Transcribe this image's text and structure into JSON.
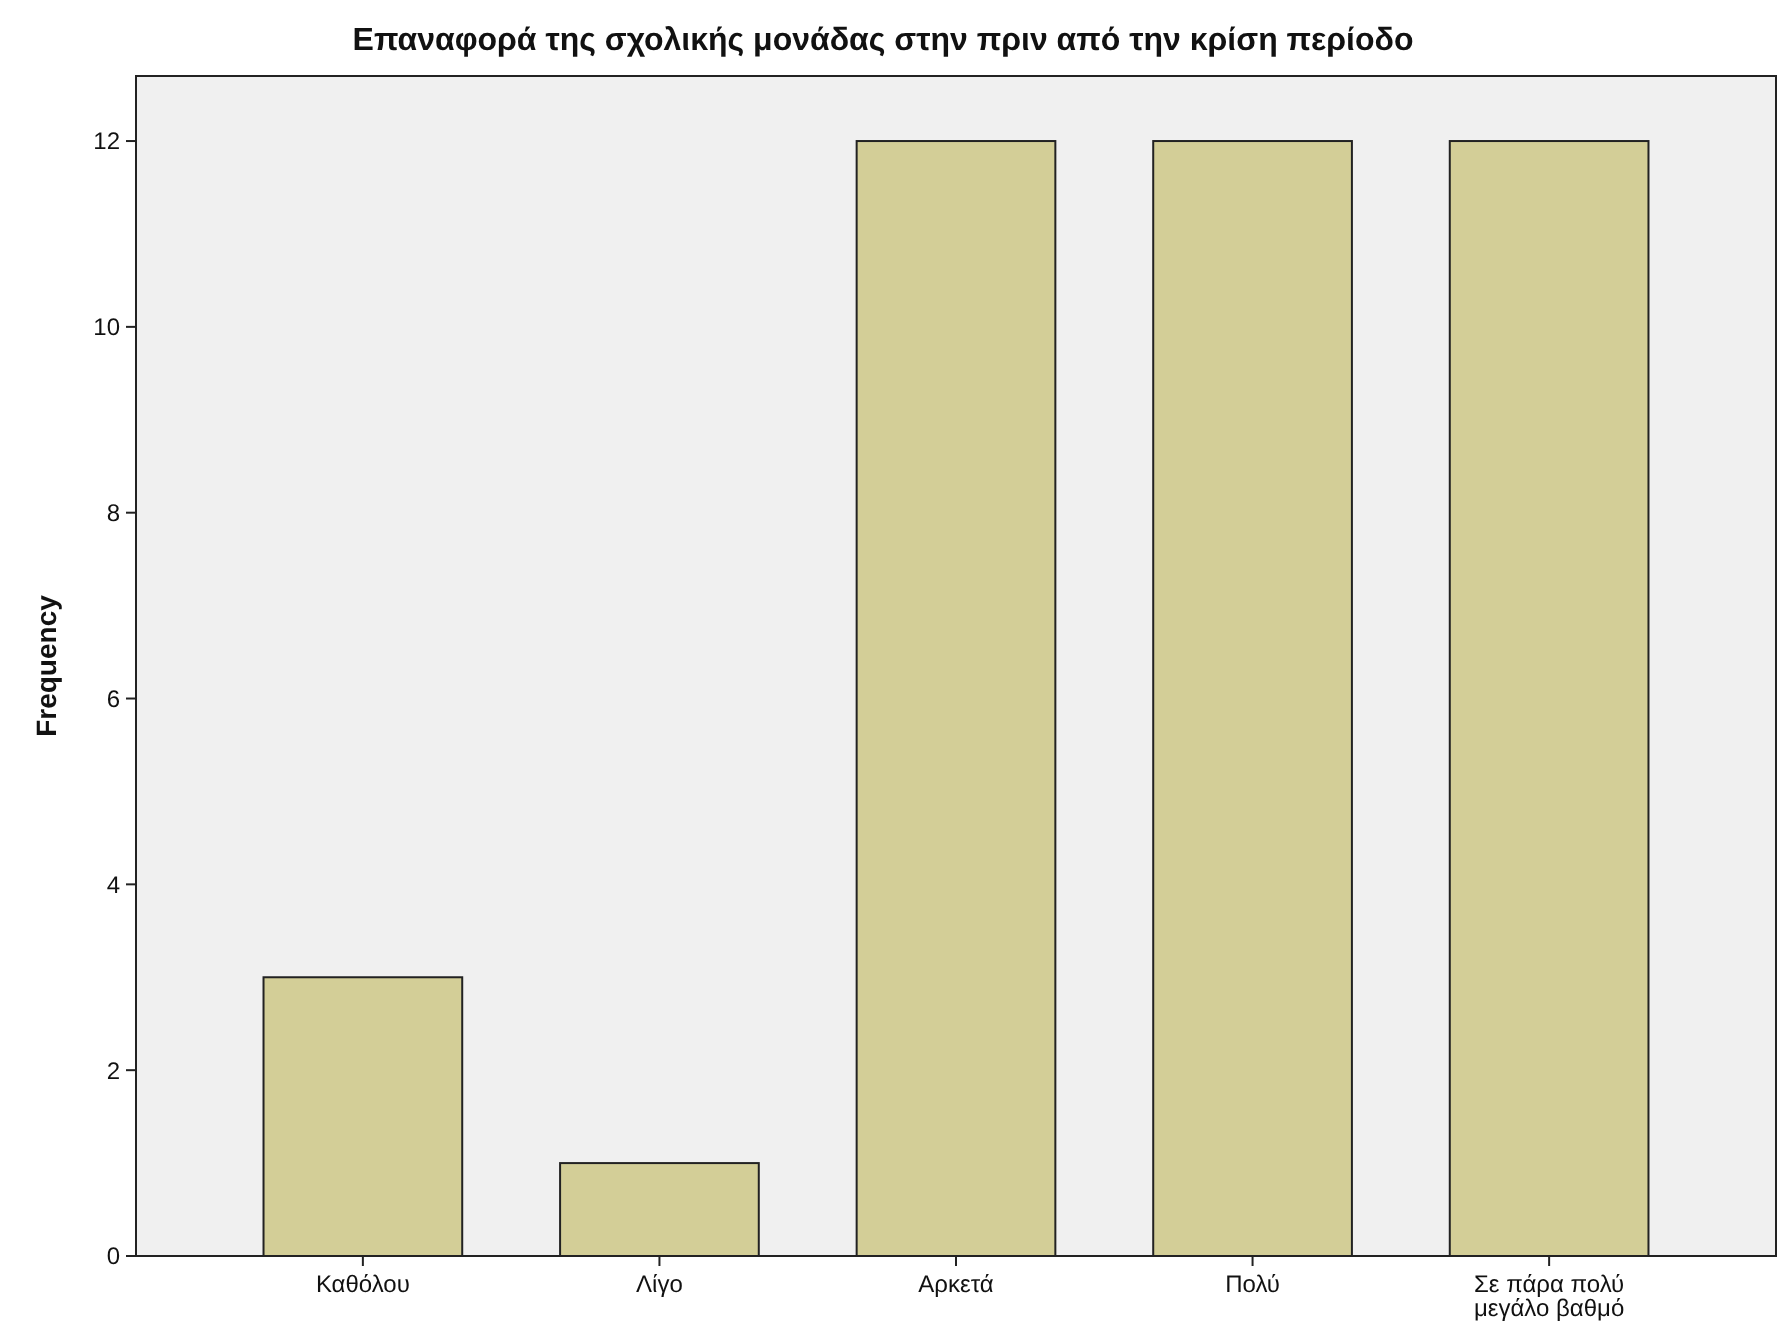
{
  "chart_data": {
    "type": "bar",
    "title": "Επαναφορά της σχολικής μονάδας στην πριν από την κρίση περίοδο",
    "ylabel": "Frequency",
    "categories": [
      "Καθόλου",
      "Λίγο",
      "Αρκετά",
      "Πολύ",
      "Σε πάρα πολύ μεγάλο βαθμό"
    ],
    "values": [
      3,
      1,
      12,
      12,
      12
    ],
    "color": "#d3ce97",
    "ylim": [
      0,
      12.7
    ],
    "yticks": [
      0,
      2,
      4,
      6,
      8,
      10,
      12
    ]
  }
}
